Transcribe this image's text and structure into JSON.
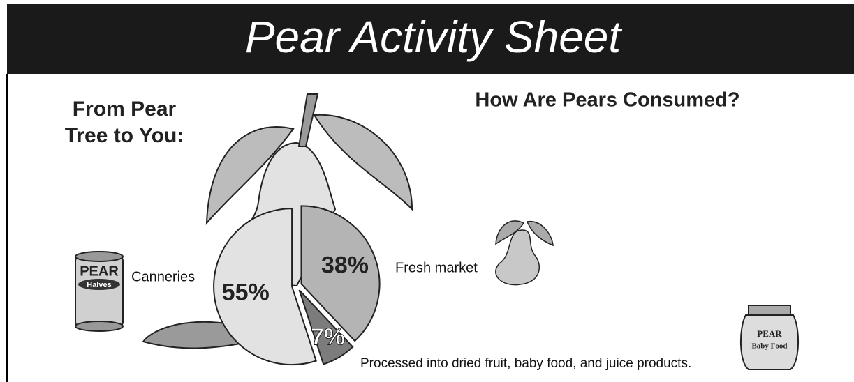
{
  "chart_data": {
    "type": "pie",
    "title": "Pear Activity Sheet",
    "heading": [
      "From Pear",
      "Tree to You:"
    ],
    "subtitle": "How Are Pears Consumed?",
    "categories": [
      "Canneries",
      "Fresh market",
      "Processed into dried fruit, baby food, and juice products."
    ],
    "values": [
      55,
      38,
      7
    ],
    "value_labels": [
      "55%",
      "38%",
      "7%"
    ],
    "colors": [
      "#e2e2e2",
      "#b4b4b4",
      "#7c7c7c"
    ]
  },
  "illustrations": {
    "can": [
      "PEAR",
      "Halves"
    ],
    "jar": [
      "PEAR",
      "Baby Food"
    ]
  }
}
